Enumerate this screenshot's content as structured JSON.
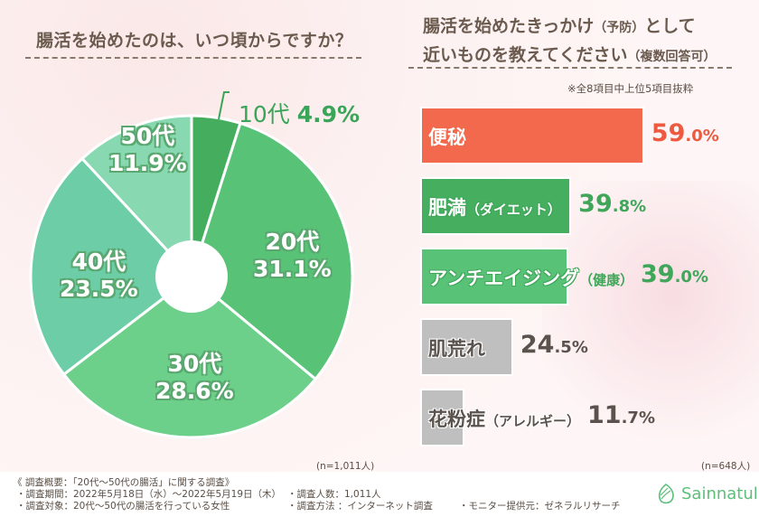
{
  "left_panel": {
    "title": "腸活を始めたのは、いつ頃からですか？",
    "n_label": "(n=1,011人)"
  },
  "right_panel": {
    "title_line1_a": "腸活を始めたきっかけ",
    "title_line1_b": "（予防）",
    "title_line1_c": "として",
    "title_line2_a": "近いものを教えてください",
    "title_line2_b": "（複数回答可）",
    "note": "※全8項目中上位5項目抜粋",
    "n_label": "(n=648人)"
  },
  "chart_data": [
    {
      "type": "pie",
      "title": "腸活を始めたのは、いつ頃からですか？",
      "donut": true,
      "categories": [
        "10代",
        "20代",
        "30代",
        "40代",
        "50代"
      ],
      "values": [
        4.9,
        31.1,
        28.6,
        23.5,
        11.9
      ],
      "value_labels": [
        "4.9%",
        "31.1%",
        "28.6%",
        "23.5%",
        "11.9%"
      ],
      "colors": [
        "#45ae5e",
        "#58c377",
        "#6dd08a",
        "#6ccda6",
        "#88d9b2"
      ],
      "n": "n=1,011人"
    },
    {
      "type": "bar",
      "orientation": "horizontal",
      "title": "腸活を始めたきっかけ（予防）として近いものを教えてください（複数回答可）",
      "categories": [
        "便秘",
        "肥満（ダイエット）",
        "アンチエイジング（健康）",
        "肌荒れ",
        "花粉症（アレルギー）"
      ],
      "labels_main": [
        "便秘",
        "肥満",
        "アンチエイジング",
        "肌荒れ",
        "花粉症"
      ],
      "labels_paren": [
        "",
        "（ダイエット）",
        "（健康）",
        "",
        "（アレルギー）"
      ],
      "values": [
        59.0,
        39.8,
        39.0,
        24.5,
        11.7
      ],
      "value_int": [
        "59",
        "39",
        "39",
        "24",
        "11"
      ],
      "value_dec": [
        ".0%",
        ".8%",
        ".0%",
        ".5%",
        ".7%"
      ],
      "colors": [
        "#f2694d",
        "#46ae5f",
        "#58c377",
        "#bfbfbf",
        "#bfbfbf"
      ],
      "value_colors": [
        "#ee5a3f",
        "#3fa65a",
        "#3fa65a",
        "#5a524c",
        "#5a524c"
      ],
      "xlim": [
        0,
        100
      ],
      "note": "※全8項目中上位5項目抜粋",
      "n": "n=648人"
    }
  ],
  "footer": {
    "summary": "《 調査概要：「20代～50代の腸活」に関する調査》",
    "period": "・調査期間：2022年5月18日（水）～2022年5月19日（木）",
    "target": "・調査対象：20代～50代の腸活を行っている女性",
    "count": "・調査人数：1,011人",
    "method": "・調査方法 ：インターネット調査",
    "provider": "・モニター提供元：ゼネラルリサーチ",
    "logo_text": "Sainnatul"
  }
}
